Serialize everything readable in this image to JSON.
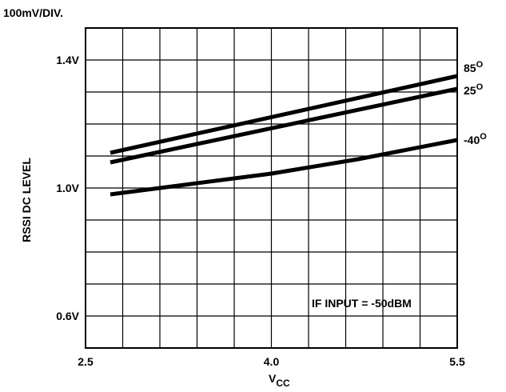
{
  "chart_data": {
    "type": "line",
    "scale_note": "100mV/DIV.",
    "ylabel": "RSSI DC LEVEL",
    "xlabel": "V",
    "xlabel_sub": "CC",
    "annotation": "IF INPUT = -50dBM",
    "xlim": [
      2.5,
      5.5
    ],
    "ylim": [
      0.5,
      1.5
    ],
    "x_ticks": [
      {
        "value": 2.5,
        "label": "2.5"
      },
      {
        "value": 4.0,
        "label": "4.0"
      },
      {
        "value": 5.5,
        "label": "5.5"
      }
    ],
    "y_ticks": [
      {
        "value": 1.4,
        "label": "1.4V"
      },
      {
        "value": 1.0,
        "label": "1.0V"
      },
      {
        "value": 0.6,
        "label": "0.6V"
      }
    ],
    "grid": true,
    "grid_x_divisions": 10,
    "grid_y_divisions": 10,
    "series": [
      {
        "name": "85",
        "name_sup": "O",
        "x": [
          2.7,
          5.5
        ],
        "y": [
          1.11,
          1.35
        ]
      },
      {
        "name": "25",
        "name_sup": "O",
        "x": [
          2.7,
          5.5
        ],
        "y": [
          1.08,
          1.31
        ]
      },
      {
        "name": "-40",
        "name_sup": "O",
        "x": [
          2.7,
          3.3,
          4.0,
          4.7,
          5.5
        ],
        "y": [
          0.98,
          1.01,
          1.045,
          1.09,
          1.15
        ]
      }
    ]
  }
}
